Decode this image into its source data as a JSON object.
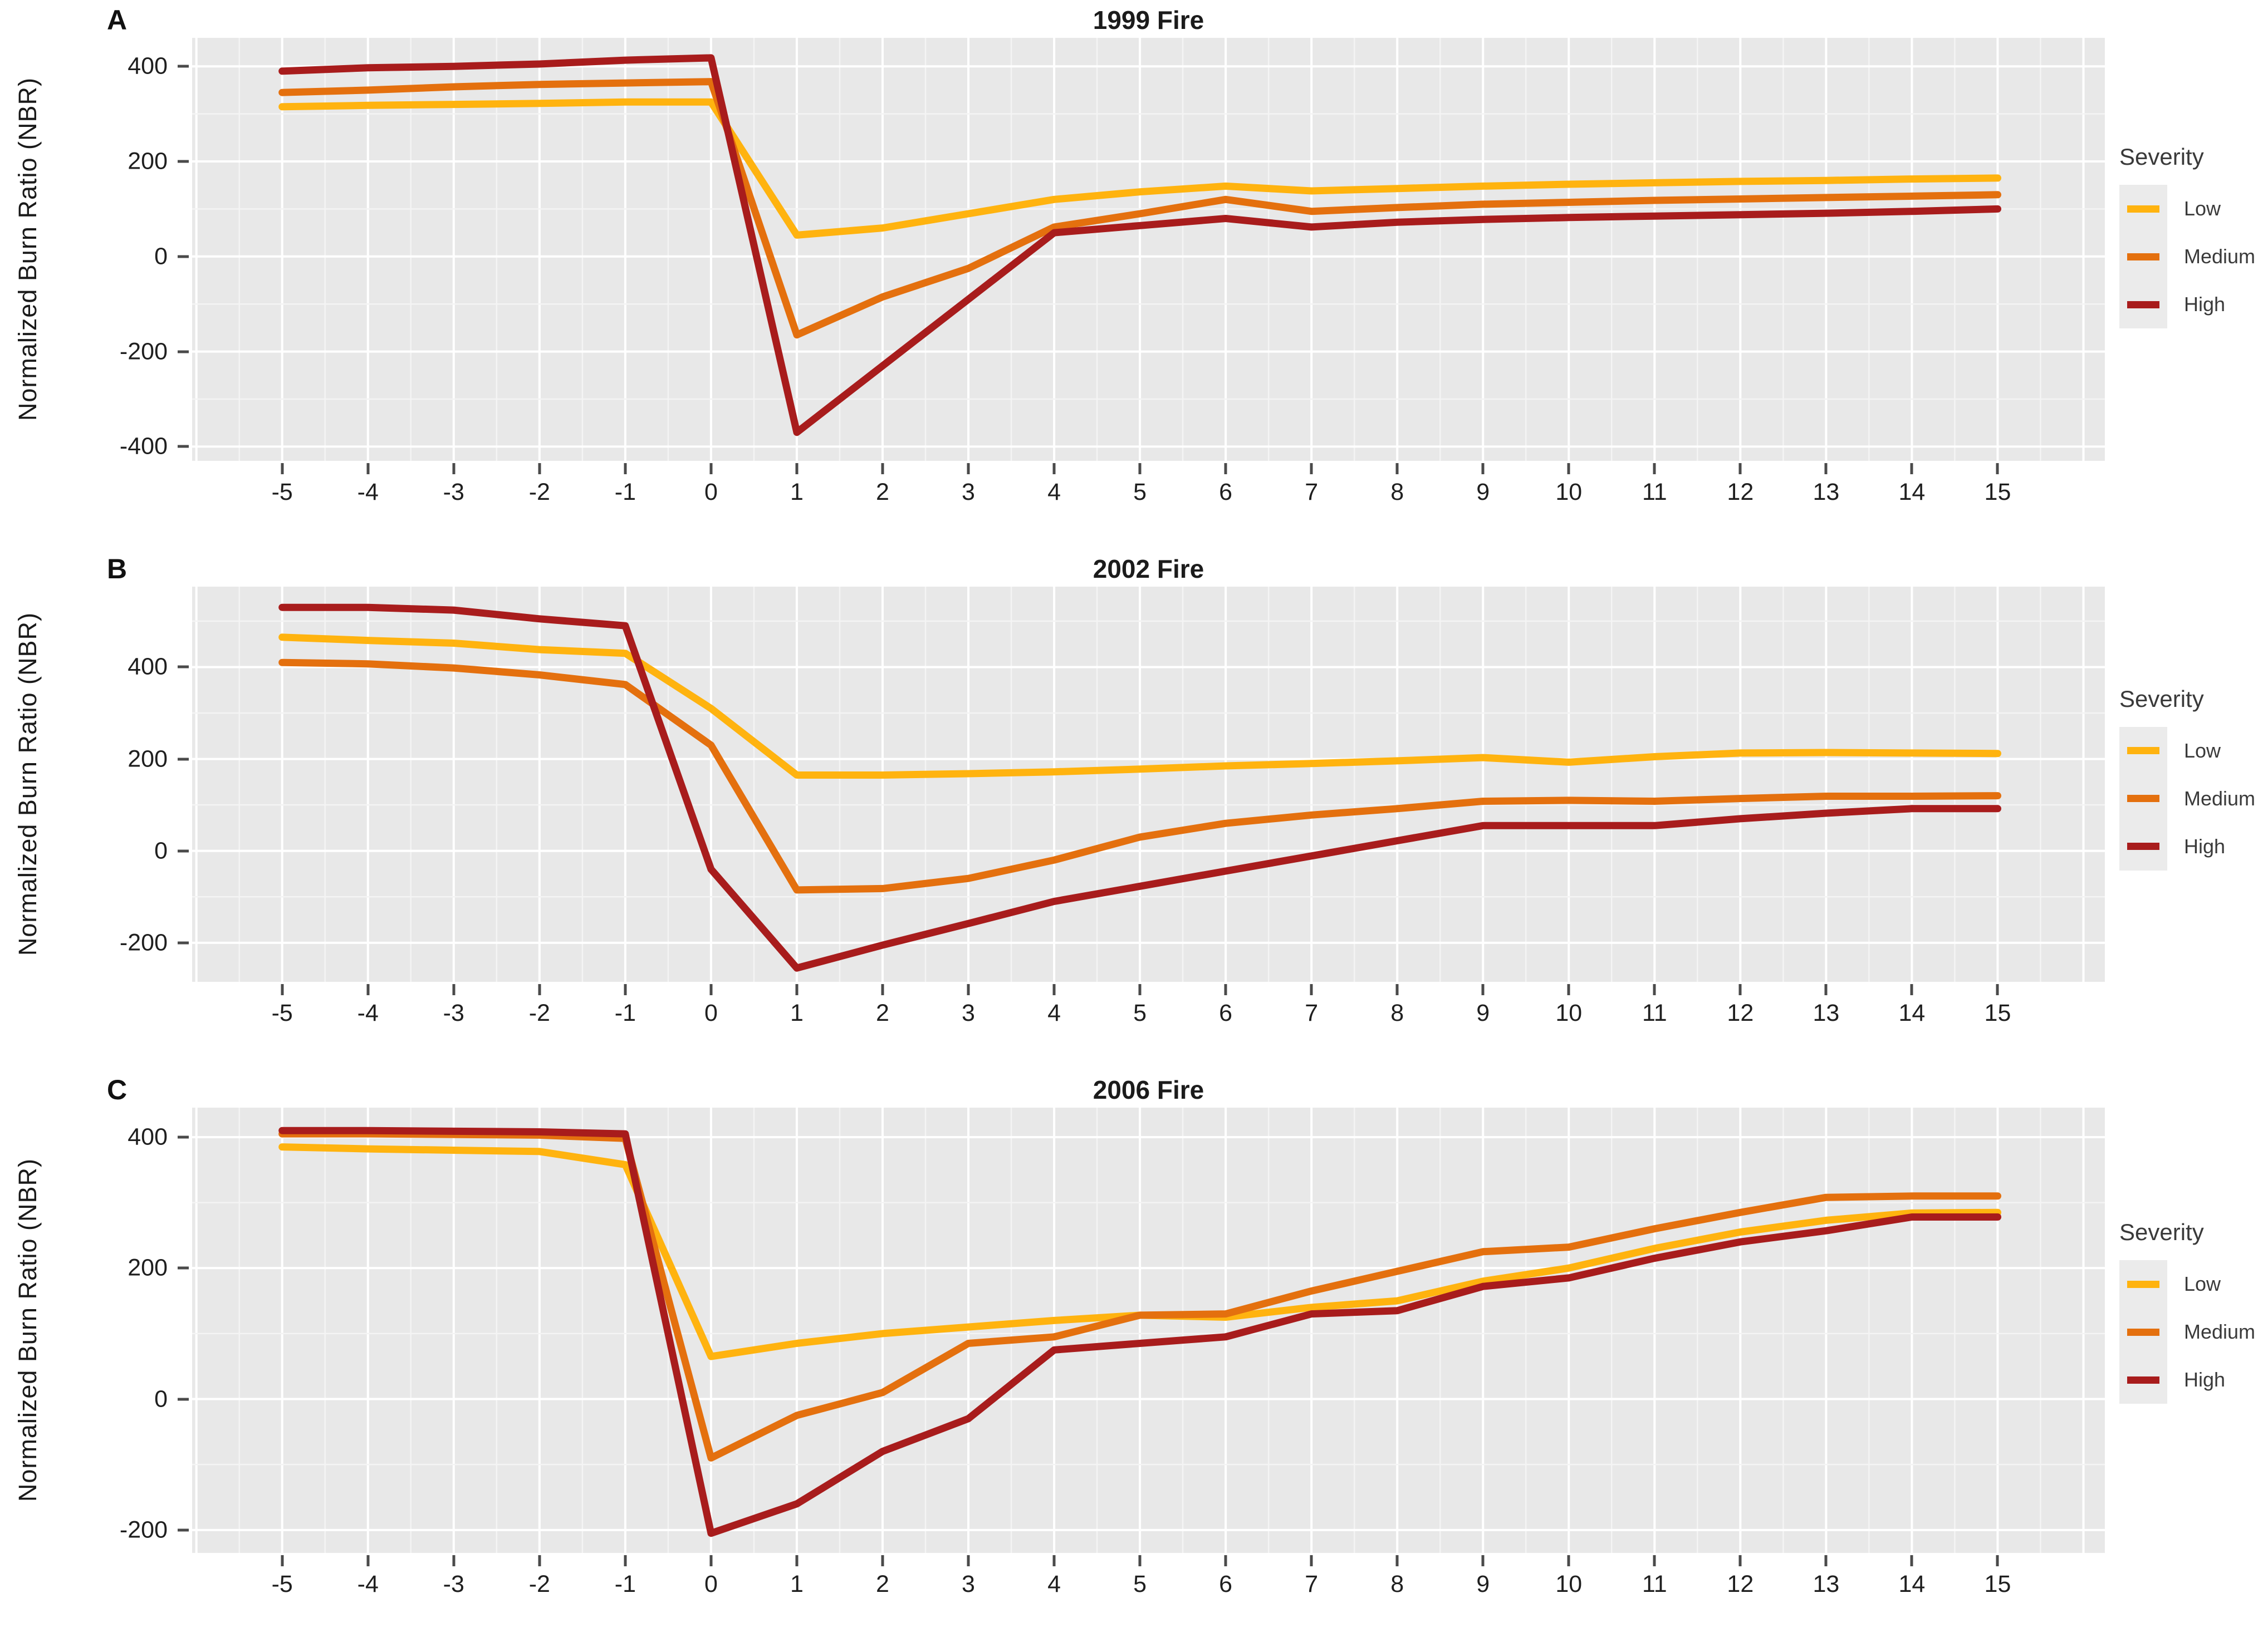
{
  "figure": {
    "y_axis_label": "Normalized Burn Ratio (NBR)",
    "x_tick_labels": [
      -5,
      -4,
      -3,
      -2,
      -1,
      0,
      1,
      2,
      3,
      4,
      5,
      6,
      7,
      8,
      9,
      10,
      11,
      12,
      13,
      14,
      15
    ],
    "legend": {
      "title": "Severity",
      "items": [
        {
          "label": "Low",
          "color": "#FFB30F"
        },
        {
          "label": "Medium",
          "color": "#E4700E"
        },
        {
          "label": "High",
          "color": "#A81C1C"
        }
      ]
    },
    "colors": {
      "low": "#FFB30F",
      "medium": "#E4700E",
      "high": "#A81C1C",
      "plot_background": "#E8E8E8",
      "gridline_major": "#FFFFFF",
      "gridline_minor": "#F4F4F4",
      "tick_text": "#1F1F1F",
      "legend_text": "#3A3A3A",
      "legend_key_background": "#EBEBEB"
    }
  },
  "chart_data": [
    {
      "type": "line",
      "panel_letter": "A",
      "title": "1999 Fire",
      "xlabel": "",
      "ylabel": "Normalized Burn Ratio (NBR)",
      "x": [
        -5,
        -4,
        -3,
        -2,
        -1,
        0,
        1,
        2,
        3,
        4,
        5,
        6,
        7,
        8,
        9,
        10,
        11,
        12,
        13,
        14,
        15
      ],
      "y_ticks": [
        400,
        200,
        0,
        -200,
        -400
      ],
      "ylim": [
        -430,
        460
      ],
      "xlim": [
        -6.05,
        16.25
      ],
      "grid": true,
      "legend_position": "right",
      "series": [
        {
          "name": "Low",
          "color": "#FFB30F",
          "values": [
            315,
            318,
            320,
            322,
            325,
            325,
            45,
            60,
            90,
            120,
            136,
            148,
            138,
            143,
            148,
            152,
            155,
            158,
            160,
            163,
            165
          ]
        },
        {
          "name": "Medium",
          "color": "#E4700E",
          "values": [
            345,
            350,
            357,
            362,
            365,
            368,
            -165,
            -85,
            -25,
            62,
            90,
            120,
            95,
            103,
            110,
            114,
            118,
            121,
            124,
            127,
            130
          ]
        },
        {
          "name": "High",
          "color": "#A81C1C",
          "values": [
            390,
            397,
            400,
            405,
            413,
            418,
            -370,
            -230,
            -90,
            50,
            65,
            80,
            62,
            72,
            78,
            82,
            85,
            88,
            91,
            95,
            100
          ]
        }
      ]
    },
    {
      "type": "line",
      "panel_letter": "B",
      "title": "2002 Fire",
      "xlabel": "",
      "ylabel": "Normalized Burn Ratio (NBR)",
      "x": [
        -5,
        -4,
        -3,
        -2,
        -1,
        0,
        1,
        2,
        3,
        4,
        5,
        6,
        7,
        8,
        9,
        10,
        11,
        12,
        13,
        14,
        15
      ],
      "y_ticks": [
        400,
        200,
        0,
        -200
      ],
      "ylim": [
        -285,
        575
      ],
      "xlim": [
        -6.05,
        16.25
      ],
      "grid": true,
      "legend_position": "right",
      "series": [
        {
          "name": "Low",
          "color": "#FFB30F",
          "values": [
            465,
            458,
            452,
            438,
            430,
            310,
            165,
            165,
            168,
            172,
            178,
            185,
            190,
            196,
            203,
            193,
            205,
            213,
            214,
            213,
            212
          ]
        },
        {
          "name": "Medium",
          "color": "#E4700E",
          "values": [
            410,
            407,
            398,
            383,
            362,
            230,
            -85,
            -82,
            -60,
            -20,
            30,
            60,
            78,
            92,
            108,
            110,
            108,
            114,
            119,
            119,
            120
          ]
        },
        {
          "name": "High",
          "color": "#A81C1C",
          "values": [
            530,
            530,
            524,
            505,
            490,
            -40,
            -255,
            -205,
            -158,
            -110,
            -77,
            -44,
            -11,
            22,
            55,
            55,
            55,
            70,
            82,
            92,
            92
          ]
        }
      ]
    },
    {
      "type": "line",
      "panel_letter": "C",
      "title": "2006 Fire",
      "xlabel": "",
      "ylabel": "Normalized Burn Ratio (NBR)",
      "x": [
        -5,
        -4,
        -3,
        -2,
        -1,
        0,
        1,
        2,
        3,
        4,
        5,
        6,
        7,
        8,
        9,
        10,
        11,
        12,
        13,
        14,
        15
      ],
      "y_ticks": [
        400,
        200,
        0,
        -200
      ],
      "ylim": [
        -235,
        445
      ],
      "xlim": [
        -6.05,
        16.25
      ],
      "grid": true,
      "legend_position": "right",
      "series": [
        {
          "name": "Low",
          "color": "#FFB30F",
          "values": [
            385,
            382,
            380,
            378,
            358,
            65,
            85,
            100,
            110,
            120,
            128,
            125,
            140,
            150,
            180,
            200,
            230,
            255,
            273,
            284,
            285
          ]
        },
        {
          "name": "Medium",
          "color": "#E4700E",
          "values": [
            405,
            405,
            404,
            403,
            398,
            -90,
            -25,
            10,
            85,
            95,
            128,
            130,
            165,
            195,
            225,
            232,
            260,
            285,
            308,
            310,
            310
          ]
        },
        {
          "name": "High",
          "color": "#A81C1C",
          "values": [
            410,
            410,
            409,
            408,
            405,
            -205,
            -160,
            -80,
            -30,
            75,
            85,
            95,
            130,
            135,
            172,
            185,
            215,
            240,
            257,
            278,
            278
          ]
        }
      ]
    }
  ]
}
